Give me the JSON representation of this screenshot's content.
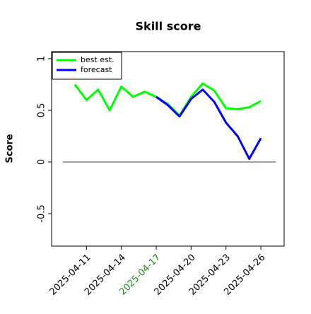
{
  "chart_data": {
    "type": "line",
    "title": "Skill score",
    "ylabel": "Score",
    "x": [
      "2025-04-10",
      "2025-04-11",
      "2025-04-12",
      "2025-04-13",
      "2025-04-14",
      "2025-04-15",
      "2025-04-16",
      "2025-04-17",
      "2025-04-18",
      "2025-04-19",
      "2025-04-20",
      "2025-04-21",
      "2025-04-22",
      "2025-04-23",
      "2025-04-24",
      "2025-04-25",
      "2025-04-26"
    ],
    "series": [
      {
        "name": "best est.",
        "color": "#00ff00",
        "values": [
          0.75,
          0.6,
          0.7,
          0.5,
          0.73,
          0.63,
          0.68,
          0.63,
          0.56,
          0.45,
          0.63,
          0.76,
          0.69,
          0.52,
          0.51,
          0.53,
          0.59
        ]
      },
      {
        "name": "forecast",
        "color": "#0000ff",
        "values": [
          null,
          null,
          null,
          null,
          null,
          null,
          null,
          0.63,
          0.55,
          0.44,
          0.61,
          0.7,
          0.58,
          0.38,
          0.25,
          0.03,
          0.23
        ]
      }
    ],
    "xlim": [
      "2025-04-08",
      "2025-04-28"
    ],
    "xticks": [
      "2025-04-11",
      "2025-04-14",
      "2025-04-17",
      "2025-04-20",
      "2025-04-23",
      "2025-04-26"
    ],
    "highlight_xtick": "2025-04-17",
    "highlight_color": "#228b22",
    "ylim": [
      -0.815,
      1.068
    ],
    "yticks": [
      -0.5,
      0.0,
      0.5,
      1.0
    ],
    "hline": 0,
    "legend": "upper left"
  }
}
